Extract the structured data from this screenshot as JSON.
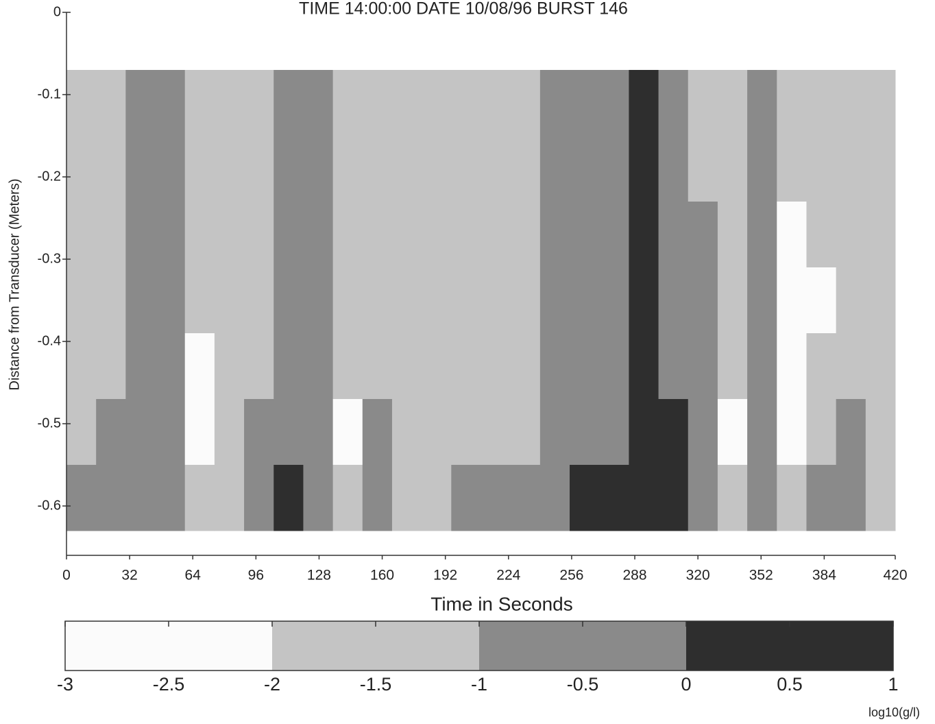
{
  "chart_data": {
    "type": "heatmap",
    "title": "TIME 14:00:00 DATE 10/08/96   BURST 146",
    "xlabel": "Time in Seconds",
    "ylabel": "Distance from Transducer (Meters)",
    "xlim": [
      0,
      420
    ],
    "xticks": [
      0,
      32,
      64,
      96,
      128,
      160,
      192,
      224,
      256,
      288,
      320,
      352,
      384,
      420
    ],
    "ylim": [
      -0.66,
      0
    ],
    "yticks": [
      0,
      -0.1,
      -0.2,
      -0.3,
      -0.4,
      -0.5,
      -0.6
    ],
    "x_edges": [
      0,
      15,
      30,
      45,
      60,
      75,
      90,
      105,
      120,
      135,
      150,
      165,
      180,
      195,
      210,
      225,
      240,
      255,
      270,
      285,
      300,
      315,
      330,
      345,
      360,
      375,
      390,
      405,
      420
    ],
    "y_edges": [
      -0.07,
      -0.15,
      -0.23,
      -0.31,
      -0.39,
      -0.47,
      -0.55,
      -0.63
    ],
    "z": [
      [
        -1.5,
        -1.3,
        -0.9,
        -0.5,
        -1.7,
        -1.5,
        -1.4,
        -0.5,
        -1.0,
        -1.6,
        -1.4,
        -1.5,
        -1.6,
        -1.2,
        -1.4,
        -1.6,
        -0.8,
        -0.3,
        -0.6,
        0.1,
        -0.3,
        -1.1,
        -1.6,
        -0.7,
        -1.8,
        -1.7,
        -1.6,
        -1.4
      ],
      [
        -1.6,
        -1.3,
        -0.9,
        -0.6,
        -1.8,
        -1.6,
        -1.4,
        -0.4,
        -0.9,
        -1.7,
        -1.3,
        -1.6,
        -1.7,
        -1.4,
        -1.5,
        -1.6,
        -0.7,
        -0.3,
        -0.5,
        0.0,
        -0.2,
        -1.1,
        -1.7,
        -0.8,
        -1.9,
        -1.8,
        -1.5,
        -1.6
      ],
      [
        -1.5,
        -1.2,
        -0.8,
        -0.6,
        -1.8,
        -1.6,
        -1.3,
        -0.3,
        -0.8,
        -1.7,
        -1.2,
        -1.6,
        -1.6,
        -1.5,
        -1.5,
        -1.4,
        -0.6,
        -0.2,
        -0.4,
        0.1,
        -0.1,
        -1.0,
        -1.8,
        -0.9,
        -2.2,
        -2.0,
        -1.4,
        -1.8
      ],
      [
        -1.4,
        -1.2,
        -0.8,
        -0.6,
        -1.9,
        -1.7,
        -1.2,
        -0.3,
        -0.8,
        -1.8,
        -1.2,
        -1.7,
        -1.7,
        -1.5,
        -1.5,
        -1.3,
        -0.6,
        -0.2,
        -0.4,
        0.2,
        -0.1,
        -1.0,
        -1.8,
        -0.9,
        -2.3,
        -2.1,
        -1.3,
        -1.8
      ],
      [
        -1.3,
        -1.1,
        -0.7,
        -0.5,
        -2.1,
        -1.7,
        -1.2,
        -0.2,
        -0.9,
        -2.0,
        -1.1,
        -1.8,
        -1.8,
        -1.6,
        -1.6,
        -1.2,
        -0.5,
        -0.1,
        -0.3,
        0.3,
        -0.1,
        -1.0,
        -2.0,
        -0.9,
        -2.3,
        -2.0,
        -1.2,
        -1.9
      ],
      [
        -1.1,
        -0.9,
        -0.5,
        -0.4,
        -2.2,
        -1.5,
        -1.0,
        -0.2,
        -1.0,
        -2.1,
        -1.0,
        -1.7,
        -1.9,
        -1.4,
        -1.4,
        -1.1,
        -0.5,
        -0.1,
        -0.2,
        0.4,
        0.0,
        -0.9,
        -2.1,
        -0.8,
        -2.2,
        -1.6,
        -1.0,
        -1.8
      ],
      [
        -0.8,
        -0.6,
        -0.2,
        -0.1,
        -1.5,
        -1.1,
        -0.7,
        0.1,
        -0.7,
        -1.4,
        -0.6,
        -1.2,
        -1.3,
        -0.9,
        -0.9,
        -0.8,
        -0.3,
        0.2,
        0.1,
        0.5,
        0.2,
        -0.6,
        -1.4,
        -0.5,
        -1.5,
        -1.0,
        -0.6,
        -1.2
      ]
    ],
    "colorbar": {
      "bins": [
        -3,
        -2,
        -1,
        0,
        1
      ],
      "colors": [
        "#fbfbfb",
        "#c4c4c4",
        "#8a8a8a",
        "#2e2e2e"
      ],
      "ticks": [
        -3,
        -2.5,
        -2,
        -1.5,
        -1,
        -0.5,
        0,
        0.5,
        1
      ],
      "label": "log10(g/l)"
    }
  }
}
